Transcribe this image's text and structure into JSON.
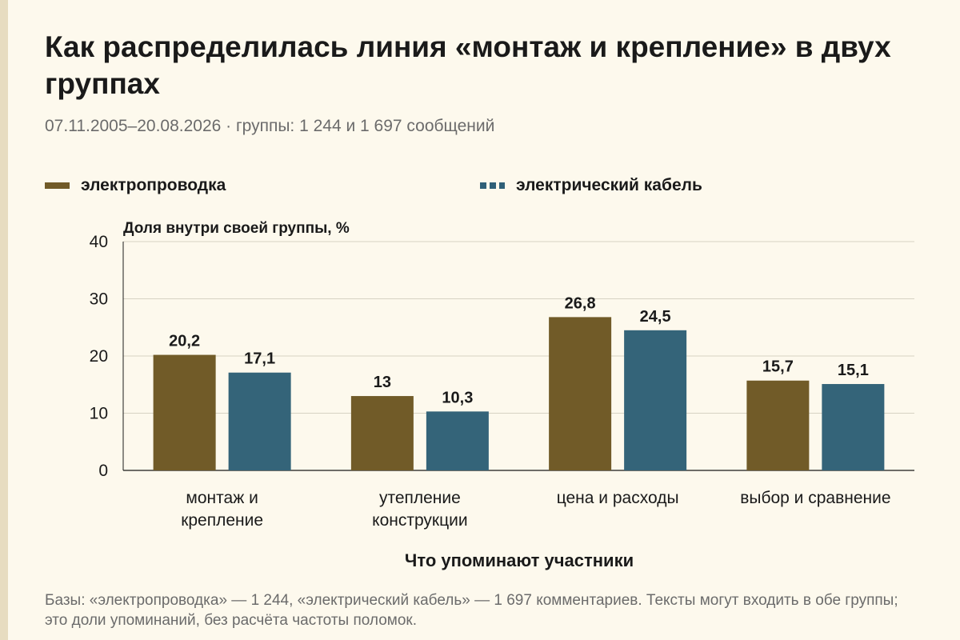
{
  "title": "Как распределилась линия «монтаж и крепление» в двух группах",
  "subtitle": "07.11.2005–20.08.2026 · группы: 1 244 и 1 697 сообщений",
  "footnote": "Базы: «электропроводка» — 1 244, «электрический кабель» — 1 697 комментариев. Тексты могут входить в обе группы; это доли упоминаний, без расчёта частоты поломок.",
  "colors": {
    "series1": "#715b28",
    "series2": "#346479",
    "background": "#fdf9ed"
  },
  "chart_data": {
    "type": "bar",
    "ylabel": "Доля внутри своей группы, %",
    "xlabel": "Что упоминают участники",
    "ylim": [
      0,
      40
    ],
    "yticks": [
      0,
      10,
      20,
      30,
      40
    ],
    "grid": true,
    "legend": "top",
    "categories": [
      [
        "монтаж и",
        "крепление"
      ],
      [
        "утепление",
        "конструкции"
      ],
      [
        "цена и расходы"
      ],
      [
        "выбор и сравнение"
      ]
    ],
    "series": [
      {
        "name": "электропроводка",
        "values": [
          20.2,
          13,
          26.8,
          15.7
        ],
        "labels": [
          "20,2",
          "13",
          "26,8",
          "15,7"
        ]
      },
      {
        "name": "электрический кабель",
        "values": [
          17.1,
          10.3,
          24.5,
          15.1
        ],
        "labels": [
          "17,1",
          "10,3",
          "24,5",
          "15,1"
        ]
      }
    ]
  }
}
